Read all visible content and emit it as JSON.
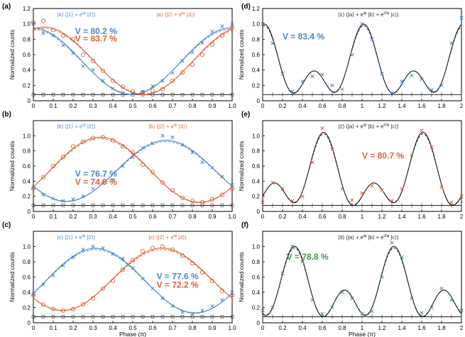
{
  "colors": {
    "blue": "#4a86c8",
    "red": "#e0603a",
    "green": "#3a9a4e",
    "dark": "#222222",
    "axis": "#000000",
    "bg": "#000000"
  },
  "chart_data": [
    {
      "panel": "(a)",
      "type": "line",
      "ylabel": "Normalized counts",
      "xlabel": "",
      "xlim": [
        0,
        1
      ],
      "ylim": [
        0,
        1.2
      ],
      "xticks": [
        "0",
        "0.1",
        "0.2",
        "0.3",
        "0.4",
        "0.5",
        "0.6",
        "0.7",
        "0.8",
        "0.9",
        "1.0"
      ],
      "yticks": [
        "0",
        "0.2",
        "0.4",
        "0.6",
        "0.8",
        "1.0",
        "1.2"
      ],
      "series": [
        {
          "name": "|a⟩ (|1⟩ + e^iφ |2⟩)",
          "color": "blue",
          "marker": "x",
          "period": 1,
          "offset": 0,
          "peak": 1,
          "min": 0.08,
          "phase": 0,
          "x": [
            0,
            0.05,
            0.1,
            0.15,
            0.2,
            0.25,
            0.3,
            0.35,
            0.4,
            0.45,
            0.5,
            0.55,
            0.6,
            0.65,
            0.7,
            0.75,
            0.8,
            0.85,
            0.9,
            0.95,
            1.0
          ],
          "values": [
            1.0,
            0.88,
            0.85,
            0.72,
            0.62,
            0.45,
            0.4,
            0.26,
            0.16,
            0.1,
            0.1,
            0.12,
            0.19,
            0.26,
            0.36,
            0.52,
            0.63,
            0.75,
            0.9,
            0.97,
            1.0
          ]
        },
        {
          "name": "|a⟩ (|2⟩ + e^iφ |3⟩)",
          "color": "red",
          "marker": "o",
          "period": 1,
          "offset": 0.05,
          "peak": 1,
          "min": 0.1,
          "phase": 0,
          "x": [
            0,
            0.05,
            0.1,
            0.15,
            0.2,
            0.25,
            0.3,
            0.35,
            0.4,
            0.45,
            0.5,
            0.55,
            0.6,
            0.65,
            0.7,
            0.75,
            0.8,
            0.85,
            0.9,
            0.95,
            1.0
          ],
          "values": [
            1.02,
            1.04,
            0.92,
            0.85,
            0.8,
            0.6,
            0.52,
            0.39,
            0.26,
            0.18,
            0.12,
            0.11,
            0.13,
            0.15,
            0.26,
            0.37,
            0.47,
            0.6,
            0.73,
            0.85,
            0.95
          ]
        }
      ],
      "labels": [
        {
          "text": "|a⟩ (|1⟩ + e",
          "sup": "iφ",
          "tail": " |2⟩)",
          "color": "blue",
          "fx": 0.12,
          "fy": 1.1
        },
        {
          "text": "|a⟩ (|2⟩ + e",
          "sup": "iφ",
          "tail": " |3⟩)",
          "color": "red",
          "fx": 0.62,
          "fy": 1.1
        },
        {
          "text": "V = 80.2 %",
          "color": "blue",
          "fx": 0.21,
          "fy": 0.87,
          "big": true
        },
        {
          "text": "V = 83.7 %",
          "color": "red",
          "fx": 0.21,
          "fy": 0.77,
          "big": true
        }
      ]
    },
    {
      "panel": "(b)",
      "type": "line",
      "ylabel": "Normalized counts",
      "xlabel": "",
      "xlim": [
        0,
        1
      ],
      "ylim": [
        0,
        1.2
      ],
      "xticks": [
        "0",
        "0.1",
        "0.2",
        "0.3",
        "0.4",
        "0.5",
        "0.6",
        "0.7",
        "0.8",
        "0.9",
        "1.0"
      ],
      "yticks": [
        "0",
        "0.2",
        "0.4",
        "0.6",
        "0.8",
        "1.0"
      ],
      "series": [
        {
          "name": "|b⟩ (|1⟩ + e^iφ |2⟩)",
          "color": "blue",
          "marker": "x",
          "period": 1,
          "offset": 0.67,
          "peak": 1,
          "min": 0.12,
          "phase": 0,
          "x": [
            0,
            0.05,
            0.1,
            0.15,
            0.2,
            0.25,
            0.3,
            0.35,
            0.4,
            0.45,
            0.5,
            0.55,
            0.6,
            0.65,
            0.7,
            0.75,
            0.8,
            0.85,
            0.9,
            0.95,
            1.0
          ],
          "values": [
            0.32,
            0.22,
            0.17,
            0.14,
            0.16,
            0.2,
            0.3,
            0.38,
            0.42,
            0.6,
            0.72,
            0.84,
            0.9,
            1.0,
            0.98,
            0.88,
            0.78,
            0.65,
            0.58,
            0.46,
            0.35
          ]
        },
        {
          "name": "|b⟩ (|2⟩ + e^iφ |3⟩)",
          "color": "red",
          "marker": "o",
          "period": 1,
          "offset": 0.35,
          "peak": 1,
          "min": 0.12,
          "phase": 0,
          "x": [
            0,
            0.05,
            0.1,
            0.15,
            0.2,
            0.25,
            0.3,
            0.35,
            0.4,
            0.45,
            0.5,
            0.55,
            0.6,
            0.65,
            0.7,
            0.75,
            0.8,
            0.85,
            0.9,
            0.95,
            1.0
          ],
          "values": [
            0.3,
            0.45,
            0.6,
            0.72,
            0.86,
            0.92,
            0.97,
            0.98,
            0.94,
            0.86,
            0.78,
            0.62,
            0.52,
            0.38,
            0.28,
            0.18,
            0.14,
            0.12,
            0.16,
            0.22,
            0.3
          ]
        }
      ],
      "labels": [
        {
          "text": "|b⟩ (|1⟩ + e",
          "sup": "iφ",
          "tail": " |2⟩)",
          "color": "blue",
          "fx": 0.12,
          "fy": 1.1
        },
        {
          "text": "|b⟩ (|2⟩ + e",
          "sup": "iφ",
          "tail": " |3⟩)",
          "color": "red",
          "fx": 0.58,
          "fy": 1.1
        },
        {
          "text": "V = 76.7 %",
          "color": "blue",
          "fx": 0.21,
          "fy": 0.46,
          "big": true
        },
        {
          "text": "V = 74.9 %",
          "color": "red",
          "fx": 0.21,
          "fy": 0.35,
          "big": true
        }
      ]
    },
    {
      "panel": "(c)",
      "type": "line",
      "ylabel": "Normalized counts",
      "xlabel": "Phase (π)",
      "xlim": [
        0,
        1
      ],
      "ylim": [
        0,
        1.2
      ],
      "xticks": [
        "0",
        "0.1",
        "0.2",
        "0.3",
        "0.4",
        "0.5",
        "0.6",
        "0.7",
        "0.8",
        "0.9",
        "1.0"
      ],
      "yticks": [
        "0",
        "0.2",
        "0.4",
        "0.6",
        "0.8",
        "1.0"
      ],
      "series": [
        {
          "name": "|c⟩ (|1⟩ + e^iφ |2⟩)",
          "color": "blue",
          "marker": "x",
          "period": 1,
          "offset": 0.33,
          "peak": 1,
          "min": 0.12,
          "phase": 0,
          "x": [
            0,
            0.05,
            0.1,
            0.15,
            0.2,
            0.25,
            0.3,
            0.35,
            0.4,
            0.45,
            0.5,
            0.55,
            0.6,
            0.65,
            0.7,
            0.75,
            0.8,
            0.85,
            0.9,
            0.95,
            1.0
          ],
          "values": [
            0.38,
            0.5,
            0.62,
            0.75,
            0.86,
            0.96,
            1.0,
            0.98,
            0.9,
            0.84,
            0.72,
            0.58,
            0.45,
            0.32,
            0.22,
            0.14,
            0.12,
            0.16,
            0.22,
            0.3,
            0.4
          ]
        },
        {
          "name": "|c⟩ (|2⟩ + e^iφ |3⟩)",
          "color": "red",
          "marker": "o",
          "period": 1,
          "offset": 0.65,
          "peak": 1,
          "min": 0.15,
          "phase": 0,
          "x": [
            0,
            0.05,
            0.1,
            0.15,
            0.2,
            0.25,
            0.3,
            0.35,
            0.4,
            0.45,
            0.5,
            0.55,
            0.6,
            0.65,
            0.7,
            0.75,
            0.8,
            0.85,
            0.9,
            0.95,
            1.0
          ],
          "values": [
            0.36,
            0.24,
            0.18,
            0.16,
            0.18,
            0.24,
            0.32,
            0.45,
            0.55,
            0.7,
            0.82,
            0.94,
            0.98,
            1.0,
            0.96,
            0.88,
            0.78,
            0.66,
            0.55,
            0.42,
            0.36
          ]
        }
      ],
      "labels": [
        {
          "text": "|c⟩ (|1⟩ + e",
          "sup": "iφ",
          "tail": " |2⟩)",
          "color": "blue",
          "fx": 0.12,
          "fy": 1.1
        },
        {
          "text": "|c⟩ (|2⟩ + e",
          "sup": "iφ",
          "tail": " |3⟩)",
          "color": "red",
          "fx": 0.58,
          "fy": 1.1
        },
        {
          "text": "V = 77.6 %",
          "color": "blue",
          "fx": 0.62,
          "fy": 0.57,
          "big": true
        },
        {
          "text": "V = 72.2 %",
          "color": "red",
          "fx": 0.62,
          "fy": 0.46,
          "big": true
        }
      ]
    },
    {
      "panel": "(d)",
      "type": "line",
      "ylabel": "Normalized counts",
      "xlabel": "",
      "xlim": [
        0,
        2
      ],
      "ylim": [
        0,
        1.2
      ],
      "xticks": [
        "0",
        "0.2",
        "0.4",
        "0.6",
        "0.8",
        "1",
        "1.2",
        "1.4",
        "1.6",
        "1.8",
        "2"
      ],
      "yticks": [
        "0",
        "0.2",
        "0.4",
        "0.6",
        "0.8",
        "1.0",
        "1.2"
      ],
      "series": [
        {
          "name": "|1⟩ (|a⟩ + e^iφ |b⟩ + e^i2φ |c⟩)",
          "color": "blue",
          "marker": "x",
          "period": 1,
          "offset": 0,
          "peak": 1,
          "min": 0.08,
          "phase": 0,
          "x": [
            0,
            0.1,
            0.2,
            0.3,
            0.4,
            0.5,
            0.6,
            0.7,
            0.8,
            0.9,
            1.0,
            1.1,
            1.2,
            1.3,
            1.4,
            1.5,
            1.6,
            1.7,
            1.8,
            1.9,
            2.0
          ],
          "values": [
            1.0,
            0.75,
            0.35,
            0.12,
            0.25,
            0.32,
            0.34,
            0.2,
            0.15,
            0.6,
            1.0,
            0.8,
            0.35,
            0.1,
            0.25,
            0.33,
            0.28,
            0.14,
            0.2,
            0.75,
            1.08
          ]
        }
      ],
      "labels": [
        {
          "text": "|1⟩ (|a⟩ + e",
          "sup": "iφ",
          "tail": " |b⟩ + e",
          "sup2": "i2φ",
          "tail2": " |c⟩)",
          "color": "dark",
          "fx": 0.38,
          "fy": 1.1
        },
        {
          "text": "V = 83.4 %",
          "color": "blue",
          "fx": 0.1,
          "fy": 0.8,
          "big": true
        }
      ]
    },
    {
      "panel": "(e)",
      "type": "line",
      "ylabel": "Normalized counts",
      "xlabel": "",
      "xlim": [
        0,
        2
      ],
      "ylim": [
        0,
        1.2
      ],
      "xticks": [
        "0",
        "0.2",
        "0.4",
        "0.6",
        "0.8",
        "1",
        "1.2",
        "1.4",
        "1.6",
        "1.8",
        "2"
      ],
      "yticks": [
        "0",
        "0.2",
        "0.4",
        "0.6",
        "0.8",
        "1.0"
      ],
      "series": [
        {
          "name": "|2⟩ (|a⟩ + e^iφ |b⟩ + e^i2φ |c⟩)",
          "color": "red",
          "marker": "x",
          "period": 1,
          "offset": 0.667,
          "peak": 1,
          "min": 0.08,
          "phase": 0,
          "x": [
            0,
            0.1,
            0.2,
            0.3,
            0.4,
            0.5,
            0.6,
            0.7,
            0.8,
            0.9,
            1.0,
            1.1,
            1.2,
            1.3,
            1.4,
            1.5,
            1.6,
            1.7,
            1.8,
            1.9,
            2.0
          ],
          "values": [
            0.12,
            0.38,
            0.3,
            0.14,
            0.2,
            0.65,
            1.1,
            0.82,
            0.3,
            0.15,
            0.24,
            0.34,
            0.28,
            0.14,
            0.3,
            0.75,
            1.07,
            0.85,
            0.32,
            0.12,
            0.2
          ]
        }
      ],
      "labels": [
        {
          "text": "|2⟩ (|a⟩ + e",
          "sup": "iφ",
          "tail": " |b⟩ + e",
          "sup2": "i2φ",
          "tail2": " |c⟩)",
          "color": "dark",
          "fx": 0.38,
          "fy": 1.1
        },
        {
          "text": "V = 80.7 %",
          "color": "red",
          "fx": 0.5,
          "fy": 0.7,
          "big": true
        }
      ]
    },
    {
      "panel": "(f)",
      "type": "line",
      "ylabel": "Normalized counts",
      "xlabel": "Phase (π)",
      "xlim": [
        0,
        2
      ],
      "ylim": [
        0,
        1.2
      ],
      "xticks": [
        "0",
        "0.2",
        "0.4",
        "0.6",
        "0.8",
        "1",
        "1.2",
        "1.4",
        "1.6",
        "1.8",
        "2"
      ],
      "yticks": [
        "0",
        "0.2",
        "0.4",
        "0.6",
        "0.8",
        "1.0"
      ],
      "series": [
        {
          "name": "|3⟩ (|a⟩ + e^iφ |b⟩ + e^i2φ |c⟩)",
          "color": "green",
          "marker": "x",
          "period": 1,
          "offset": 0.333,
          "peak": 1,
          "min": 0.08,
          "phase": 0,
          "x": [
            0,
            0.1,
            0.2,
            0.3,
            0.4,
            0.5,
            0.6,
            0.7,
            0.8,
            0.9,
            1.0,
            1.1,
            1.2,
            1.3,
            1.4,
            1.5,
            1.6,
            1.7,
            1.8,
            1.9,
            2.0
          ],
          "values": [
            0.16,
            0.2,
            0.65,
            1.0,
            0.8,
            0.3,
            0.12,
            0.2,
            0.4,
            0.32,
            0.12,
            0.15,
            0.6,
            1.05,
            0.86,
            0.32,
            0.13,
            0.2,
            0.45,
            0.3,
            0.16
          ]
        }
      ],
      "labels": [
        {
          "text": "|3⟩ (|a⟩ + e",
          "sup": "iφ",
          "tail": " |b⟩ + e",
          "sup2": "i2φ",
          "tail2": " |c⟩)",
          "color": "dark",
          "fx": 0.38,
          "fy": 1.1
        },
        {
          "text": "V = 78.8 %",
          "color": "green",
          "fx": 0.12,
          "fy": 0.83,
          "big": true
        }
      ]
    }
  ]
}
